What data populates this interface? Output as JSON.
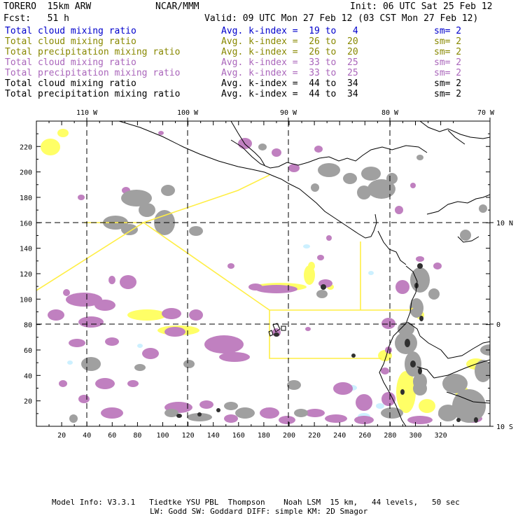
{
  "header": {
    "model": "TORERO  15km ARW",
    "org": "NCAR/MMM",
    "init": "Init: 06 UTC Sat 25 Feb 12",
    "fcst": "Fcst:   51 h",
    "valid": "Valid: 09 UTC Mon 27 Feb 12 (03 CST Mon 27 Feb 12)"
  },
  "legend": [
    {
      "field": "Total cloud mixing ratio",
      "kindex": "Avg. k-index =  19 to   4",
      "sm": "sm= 2",
      "color": "#0000cc"
    },
    {
      "field": "Total cloud mixing ratio",
      "kindex": "Avg. k-index =  26 to  20",
      "sm": "sm= 2",
      "color": "#888800"
    },
    {
      "field": "Total precipitation mixing ratio",
      "kindex": "Avg. k-index =  26 to  20",
      "sm": "sm= 2",
      "color": "#888800"
    },
    {
      "field": "Total cloud mixing ratio",
      "kindex": "Avg. k-index =  33 to  25",
      "sm": "sm= 2",
      "color": "#aa66bb"
    },
    {
      "field": "Total precipitation mixing ratio",
      "kindex": "Avg. k-index =  33 to  25",
      "sm": "sm= 2",
      "color": "#aa66bb"
    },
    {
      "field": "Total cloud mixing ratio",
      "kindex": "Avg. k-index =  44 to  34",
      "sm": "sm= 2",
      "color": "#000000"
    },
    {
      "field": "Total precipitation mixing ratio",
      "kindex": "Avg. k-index =  44 to  34",
      "sm": "sm= 2",
      "color": "#000000"
    }
  ],
  "map": {
    "grid_x_ticks": [
      "20",
      "40",
      "60",
      "80",
      "100",
      "120",
      "140",
      "160",
      "180",
      "200",
      "220",
      "240",
      "260",
      "280",
      "300",
      "320"
    ],
    "grid_y_ticks": [
      "20",
      "40",
      "60",
      "80",
      "100",
      "120",
      "140",
      "160",
      "180",
      "200",
      "220"
    ],
    "lon_labels": [
      "110 W",
      "100 W",
      "90 W",
      "80 W",
      "70 W"
    ],
    "lat_labels": [
      "10 N",
      "0",
      "10 S"
    ],
    "colors": {
      "yellow": "#ffff66",
      "magenta": "#c080c0",
      "gray": "#a0a0a0",
      "cyan": "#ccf0ff",
      "boundary": "#ffee44"
    }
  },
  "footer": {
    "line1": "Model Info: V3.3.1   Tiedtke YSU PBL  Thompson    Noah LSM  15 km,   44 levels,   50 sec",
    "line2": "LW: Godd SW: Goddard DIFF: simple KM: 2D Smagor"
  }
}
